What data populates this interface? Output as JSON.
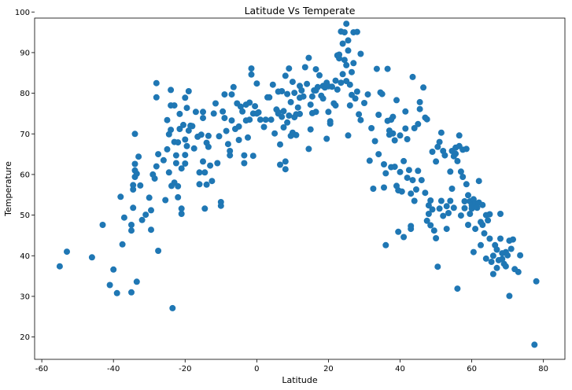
{
  "chart_data": {
    "type": "scatter",
    "title": "Latitude Vs Temperate",
    "xlabel": "Latitude",
    "ylabel": "Temperature",
    "xlim": [
      -62,
      86
    ],
    "ylim": [
      14.5,
      98.5
    ],
    "xticks": [
      -60,
      -40,
      -20,
      0,
      20,
      40,
      60,
      80
    ],
    "yticks": [
      20,
      30,
      40,
      50,
      60,
      70,
      80,
      90,
      100
    ],
    "grid": false,
    "marker_color": "#1f77b4",
    "points": [
      [
        -55,
        37.4
      ],
      [
        -53,
        41
      ],
      [
        -46,
        39.6
      ],
      [
        -43,
        47.6
      ],
      [
        -41,
        32.8
      ],
      [
        -40,
        36.6
      ],
      [
        -39,
        30.8
      ],
      [
        -38,
        54.5
      ],
      [
        -37.5,
        42.8
      ],
      [
        -37,
        49.4
      ],
      [
        -35,
        31
      ],
      [
        -35,
        46.2
      ],
      [
        -35,
        47.6
      ],
      [
        -34.5,
        51.8
      ],
      [
        -34.5,
        56.3
      ],
      [
        -34.5,
        57.4
      ],
      [
        -34,
        59.4
      ],
      [
        -34,
        61
      ],
      [
        -34,
        62.6
      ],
      [
        -34,
        70
      ],
      [
        -33.5,
        33.6
      ],
      [
        -33.5,
        60.2
      ],
      [
        -33,
        64.4
      ],
      [
        -32.5,
        57.3
      ],
      [
        -32,
        48.8
      ],
      [
        -31,
        50.1
      ],
      [
        -30,
        54.3
      ],
      [
        -29.5,
        46.4
      ],
      [
        -29.5,
        51.2
      ],
      [
        -29,
        60
      ],
      [
        -28.5,
        59
      ],
      [
        -28,
        62
      ],
      [
        -27.5,
        65
      ],
      [
        -28,
        79
      ],
      [
        -28,
        82.5
      ],
      [
        -27.5,
        41.2
      ],
      [
        -26,
        63.5
      ],
      [
        -25.5,
        53.7
      ],
      [
        -25,
        73.4
      ],
      [
        -25,
        66.2
      ],
      [
        -24.5,
        60.5
      ],
      [
        -24.5,
        69.9
      ],
      [
        -24,
        71
      ],
      [
        -24,
        77
      ],
      [
        -24,
        80.8
      ],
      [
        -23.8,
        57.2
      ],
      [
        -23.5,
        27.1
      ],
      [
        -23,
        58
      ],
      [
        -23,
        68
      ],
      [
        -23,
        77
      ],
      [
        -22.5,
        62.8
      ],
      [
        -22.5,
        64.7
      ],
      [
        -22,
        67.9
      ],
      [
        -22,
        57.1
      ],
      [
        -22,
        54.4
      ],
      [
        -21.5,
        71.2
      ],
      [
        -21.5,
        74.9
      ],
      [
        -21,
        51.6
      ],
      [
        -21,
        50.3
      ],
      [
        -21,
        61.5
      ],
      [
        -20.5,
        72.2
      ],
      [
        -20,
        64.8
      ],
      [
        -20,
        68.6
      ],
      [
        -20,
        78.9
      ],
      [
        -20,
        62.7
      ],
      [
        -19.5,
        67
      ],
      [
        -19.5,
        76.4
      ],
      [
        -19,
        80.5
      ],
      [
        -19,
        70.8
      ],
      [
        -18.5,
        72
      ],
      [
        -18,
        71.9
      ],
      [
        -17.5,
        66.4
      ],
      [
        -17,
        75.4
      ],
      [
        -16.5,
        69.3
      ],
      [
        -16,
        57.6
      ],
      [
        -16,
        60.5
      ],
      [
        -15.5,
        69.8
      ],
      [
        -15,
        75.4
      ],
      [
        -15,
        73.9
      ],
      [
        -15,
        63.2
      ],
      [
        -14.5,
        60.5
      ],
      [
        -14.5,
        51.6
      ],
      [
        -14,
        67.8
      ],
      [
        -14,
        57.5
      ],
      [
        -13.5,
        66.8
      ],
      [
        -13.5,
        69.5
      ],
      [
        -13,
        62.2
      ],
      [
        -12.5,
        58.4
      ],
      [
        -12,
        75
      ],
      [
        -11.5,
        77.5
      ],
      [
        -11,
        62.8
      ],
      [
        -10.5,
        69.4
      ],
      [
        -10,
        53.2
      ],
      [
        -10,
        52.3
      ],
      [
        -9.5,
        75.5
      ],
      [
        -9,
        73.9
      ],
      [
        -9,
        79.7
      ],
      [
        -8.5,
        70.7
      ],
      [
        -8,
        67.5
      ],
      [
        -7.5,
        65.8
      ],
      [
        -7.5,
        64.7
      ],
      [
        -7,
        79.7
      ],
      [
        -7,
        73.3
      ],
      [
        -6.5,
        81.5
      ],
      [
        -6,
        71.2
      ],
      [
        -5.5,
        77.5
      ],
      [
        -5,
        68.5
      ],
      [
        -5,
        71.8
      ],
      [
        -4.5,
        76.7
      ],
      [
        -4,
        75.5
      ],
      [
        -3.5,
        62.8
      ],
      [
        -3.5,
        64.7
      ],
      [
        -3,
        73.3
      ],
      [
        -3,
        77.2
      ],
      [
        -2.5,
        69.1
      ],
      [
        -2,
        73.5
      ],
      [
        -2,
        77.7
      ],
      [
        -1.5,
        84.6
      ],
      [
        -1.5,
        86.1
      ],
      [
        -1,
        75
      ],
      [
        -1,
        64.6
      ],
      [
        -0.5,
        76.8
      ],
      [
        0,
        82.4
      ],
      [
        0,
        75
      ],
      [
        0.5,
        75.3
      ],
      [
        1,
        73.5
      ],
      [
        2,
        71.7
      ],
      [
        2.5,
        73.5
      ],
      [
        3,
        79
      ],
      [
        3.5,
        79
      ],
      [
        4,
        73.5
      ],
      [
        4.5,
        82.1
      ],
      [
        5,
        70.1
      ],
      [
        5.5,
        76
      ],
      [
        6,
        75.3
      ],
      [
        6,
        80.4
      ],
      [
        6,
        75
      ],
      [
        6.5,
        67.4
      ],
      [
        6.5,
        62.4
      ],
      [
        7,
        74.2
      ],
      [
        7,
        80.5
      ],
      [
        7.5,
        71.6
      ],
      [
        7.5,
        75.6
      ],
      [
        8,
        63.2
      ],
      [
        8,
        61.3
      ],
      [
        8,
        84.3
      ],
      [
        8.5,
        79.8
      ],
      [
        8.5,
        72.8
      ],
      [
        9,
        86.1
      ],
      [
        9,
        74.5
      ],
      [
        9.5,
        69.5
      ],
      [
        9.5,
        77.8
      ],
      [
        10,
        82.8
      ],
      [
        10,
        70.3
      ],
      [
        10.5,
        80.1
      ],
      [
        10.5,
        74.1
      ],
      [
        11,
        74.8
      ],
      [
        11,
        69.7
      ],
      [
        11.5,
        76.5
      ],
      [
        12,
        74.9
      ],
      [
        12,
        81.8
      ],
      [
        12,
        78.9
      ],
      [
        12.5,
        80.7
      ],
      [
        13,
        79.2
      ],
      [
        13.5,
        86.4
      ],
      [
        14,
        82.3
      ],
      [
        14.5,
        88.7
      ],
      [
        14.5,
        66.3
      ],
      [
        15,
        71.1
      ],
      [
        15,
        77.2
      ],
      [
        15.5,
        79.2
      ],
      [
        15.5,
        75.1
      ],
      [
        16,
        80.7
      ],
      [
        16.5,
        85.9
      ],
      [
        16.5,
        80.7
      ],
      [
        16.5,
        75.4
      ],
      [
        17,
        81.5
      ],
      [
        17.5,
        84.4
      ],
      [
        18,
        79.4
      ],
      [
        18.5,
        78.7
      ],
      [
        18.5,
        81.8
      ],
      [
        19,
        81.4
      ],
      [
        19.5,
        68.8
      ],
      [
        19.5,
        82.6
      ],
      [
        20,
        75.4
      ],
      [
        20,
        81.7
      ],
      [
        20.5,
        73.1
      ],
      [
        20.5,
        72.5
      ],
      [
        21,
        81.6
      ],
      [
        21.5,
        77.5
      ],
      [
        22,
        77
      ],
      [
        22,
        83.1
      ],
      [
        22.5,
        80.9
      ],
      [
        22.5,
        89.3
      ],
      [
        23,
        88.6
      ],
      [
        23,
        89.5
      ],
      [
        23.5,
        82.6
      ],
      [
        23.5,
        95.2
      ],
      [
        24,
        84.7
      ],
      [
        24,
        92.2
      ],
      [
        24.5,
        88.2
      ],
      [
        24.5,
        95
      ],
      [
        25,
        83
      ],
      [
        25,
        86.9
      ],
      [
        25,
        97.1
      ],
      [
        25.5,
        90.5
      ],
      [
        25.5,
        93
      ],
      [
        25.5,
        69.6
      ],
      [
        26,
        77
      ],
      [
        26,
        82.1
      ],
      [
        26.5,
        79.6
      ],
      [
        26.5,
        85.2
      ],
      [
        27,
        95
      ],
      [
        27,
        87.4
      ],
      [
        27.5,
        78.7
      ],
      [
        28,
        95.1
      ],
      [
        28,
        80.4
      ],
      [
        28.5,
        74.8
      ],
      [
        29,
        73.4
      ],
      [
        29,
        89.7
      ],
      [
        30,
        77.6
      ],
      [
        31,
        79.7
      ],
      [
        31.5,
        63.4
      ],
      [
        32,
        71.4
      ],
      [
        32.5,
        56.5
      ],
      [
        33,
        68.2
      ],
      [
        33.5,
        86
      ],
      [
        34,
        74.7
      ],
      [
        34,
        65
      ],
      [
        34.5,
        80.2
      ],
      [
        35,
        79.8
      ],
      [
        35.5,
        62.5
      ],
      [
        35.5,
        56.8
      ],
      [
        36,
        42.6
      ],
      [
        36,
        60.3
      ],
      [
        36.5,
        73.2
      ],
      [
        36.5,
        86
      ],
      [
        37,
        69.8
      ],
      [
        37,
        70.8
      ],
      [
        37.5,
        61.8
      ],
      [
        37.5,
        73.5
      ],
      [
        38,
        74.2
      ],
      [
        38,
        70.1
      ],
      [
        38.5,
        61.9
      ],
      [
        38.5,
        68.4
      ],
      [
        39,
        78.3
      ],
      [
        39,
        57.2
      ],
      [
        39.5,
        56.1
      ],
      [
        39.5,
        45.9
      ],
      [
        40,
        60.6
      ],
      [
        40,
        69.6
      ],
      [
        40.5,
        55.8
      ],
      [
        41,
        63.3
      ],
      [
        41,
        44.6
      ],
      [
        41.5,
        75.5
      ],
      [
        41.5,
        71.3
      ],
      [
        42,
        68.7
      ],
      [
        42,
        59.2
      ],
      [
        42.5,
        61.1
      ],
      [
        43,
        46.6
      ],
      [
        43,
        55.3
      ],
      [
        43,
        47.3
      ],
      [
        43.5,
        84
      ],
      [
        43.5,
        58.6
      ],
      [
        44,
        71.4
      ],
      [
        44,
        53.5
      ],
      [
        44.5,
        56.3
      ],
      [
        45,
        60.9
      ],
      [
        45,
        72.4
      ],
      [
        45.5,
        77.8
      ],
      [
        45.5,
        76.1
      ],
      [
        46,
        58.6
      ],
      [
        46.5,
        81.4
      ],
      [
        47,
        74
      ],
      [
        47,
        55.5
      ],
      [
        47.5,
        73.6
      ],
      [
        47.5,
        48.6
      ],
      [
        48,
        52.4
      ],
      [
        48,
        50.3
      ],
      [
        48.5,
        53.6
      ],
      [
        48.5,
        47.5
      ],
      [
        49,
        65.6
      ],
      [
        49,
        51.4
      ],
      [
        49.5,
        46.2
      ],
      [
        50,
        63.2
      ],
      [
        50,
        44.3
      ],
      [
        50.5,
        37.3
      ],
      [
        50.5,
        66.8
      ],
      [
        51,
        51.6
      ],
      [
        51,
        68
      ],
      [
        51.5,
        70.3
      ],
      [
        51.5,
        53.5
      ],
      [
        52,
        65.8
      ],
      [
        52,
        49.8
      ],
      [
        52.5,
        64.7
      ],
      [
        53,
        52.2
      ],
      [
        53,
        46.6
      ],
      [
        53.5,
        50.5
      ],
      [
        54,
        60.7
      ],
      [
        54,
        53.5
      ],
      [
        54.5,
        56.5
      ],
      [
        54.5,
        65.8
      ],
      [
        55,
        64.5
      ],
      [
        55,
        51.8
      ],
      [
        55.5,
        65.1
      ],
      [
        55.5,
        66.6
      ],
      [
        56,
        31.9
      ],
      [
        56,
        63.3
      ],
      [
        56.5,
        67
      ],
      [
        56.5,
        69.6
      ],
      [
        57,
        60.7
      ],
      [
        57,
        49.9
      ],
      [
        57.5,
        59.4
      ],
      [
        57.5,
        66.1
      ],
      [
        58,
        51.7
      ],
      [
        58,
        53.4
      ],
      [
        58.5,
        57.6
      ],
      [
        58.5,
        66.3
      ],
      [
        59,
        54.9
      ],
      [
        59,
        47.6
      ],
      [
        59.5,
        50.3
      ],
      [
        59.5,
        53.4
      ],
      [
        60,
        51.6
      ],
      [
        60,
        52.4
      ],
      [
        60.5,
        40.9
      ],
      [
        60.5,
        53.9
      ],
      [
        61,
        46.6
      ],
      [
        61,
        52.9
      ],
      [
        61.5,
        51.8
      ],
      [
        62,
        53.1
      ],
      [
        62,
        58.4
      ],
      [
        62.5,
        42.6
      ],
      [
        62.5,
        48.3
      ],
      [
        63,
        47.6
      ],
      [
        63,
        52.5
      ],
      [
        63.5,
        45.5
      ],
      [
        64,
        39.3
      ],
      [
        64,
        50
      ],
      [
        64.5,
        48.7
      ],
      [
        65,
        50.2
      ],
      [
        65,
        44.2
      ],
      [
        65.5,
        38.5
      ],
      [
        66,
        40
      ],
      [
        66,
        35.5
      ],
      [
        66.5,
        42.6
      ],
      [
        67,
        41.5
      ],
      [
        67,
        37
      ],
      [
        67.5,
        38.9
      ],
      [
        68,
        44.2
      ],
      [
        68,
        50.3
      ],
      [
        68.5,
        39.2
      ],
      [
        68.5,
        40.6
      ],
      [
        69,
        38
      ],
      [
        69.5,
        37.4
      ],
      [
        69.5,
        40.9
      ],
      [
        70,
        40.1
      ],
      [
        70.5,
        43.7
      ],
      [
        70.5,
        30.1
      ],
      [
        71,
        41.7
      ],
      [
        71.5,
        44
      ],
      [
        72,
        36.7
      ],
      [
        73,
        36
      ],
      [
        73.5,
        40.1
      ],
      [
        77.5,
        18.1
      ],
      [
        78,
        33.7
      ]
    ]
  }
}
